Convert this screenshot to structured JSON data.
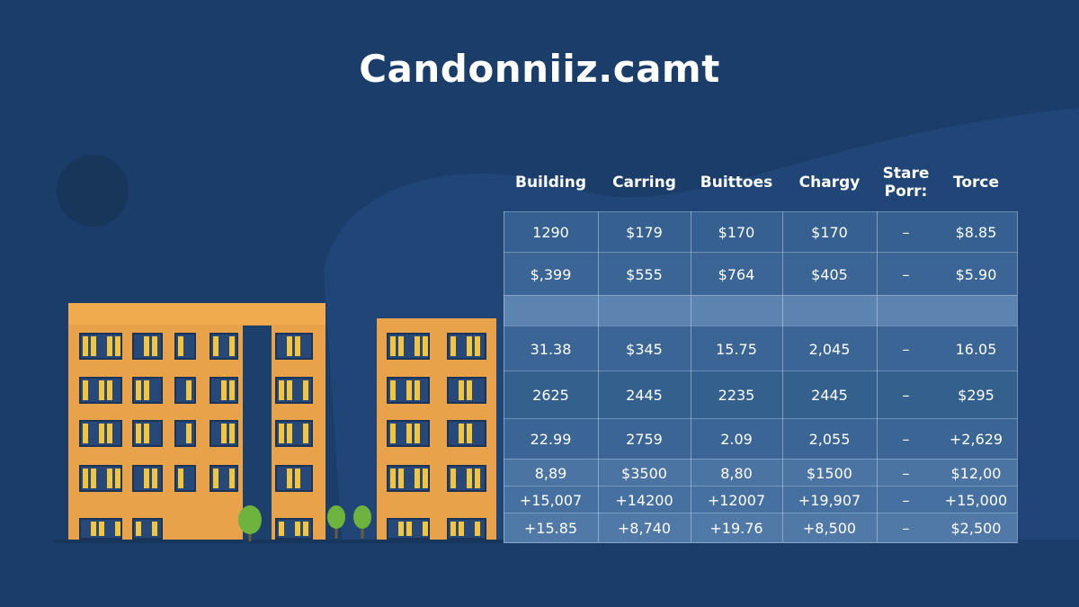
{
  "title": "Candonniiz.camt",
  "table": {
    "headers": [
      "Building",
      "Carring",
      "Buittoes",
      "Chargy",
      "Stare\nPorr:",
      "Torce"
    ],
    "rows": [
      [
        "1290",
        "$179",
        "$170",
        "$170",
        "–",
        "$8.85"
      ],
      [
        "$,399",
        "$555",
        "$764",
        "$405",
        "–",
        "$5.90"
      ],
      [
        "31.38",
        "$345",
        "15.75",
        "2,045",
        "–",
        "16.05"
      ],
      [
        "2625",
        "2445",
        "2235",
        "2445",
        "–",
        "$295"
      ],
      [
        "22.99",
        "2759",
        "2.09",
        "2,055",
        "–",
        "+2,629"
      ],
      [
        "8,89",
        "$3500",
        "8,80",
        "$1500",
        "–",
        "$12,00"
      ],
      [
        "+15,007",
        "+14200",
        "+12007",
        "+19,907",
        "–",
        "+15,000"
      ],
      [
        "+15.85",
        "+8,740",
        "+19.76",
        "+8,500",
        "–",
        "$2,500"
      ]
    ]
  }
}
